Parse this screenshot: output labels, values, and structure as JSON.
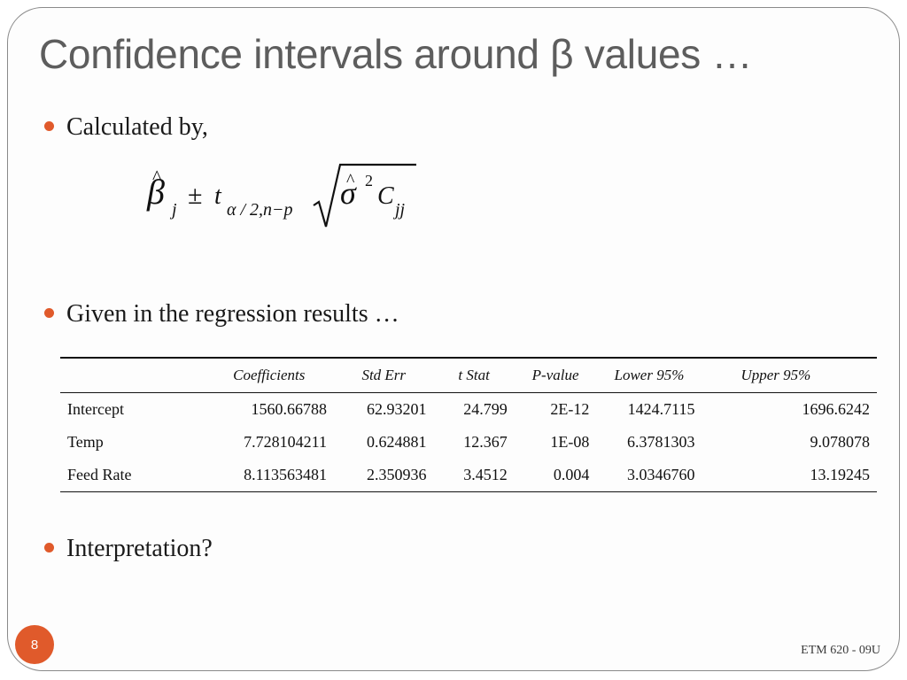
{
  "slide": {
    "title": "Confidence intervals around β values …",
    "bullets": [
      "Calculated by,",
      "Given in the regression results …",
      "Interpretation?"
    ],
    "formula": {
      "beta": "β",
      "hat": "^",
      "sub_j": "j",
      "pm": "±",
      "t": "t",
      "t_sub": "α / 2,n−p",
      "sigma": "σ",
      "sup_2": "2",
      "C": "C",
      "sub_jj": "jj"
    },
    "page_number": "8",
    "footer": "ETM 620 - 09U",
    "accent_color": "#e05a2b"
  },
  "regression_table": {
    "headers": [
      "",
      "Coefficients",
      "Std Err",
      "t Stat",
      "P-value",
      "Lower 95%",
      "Upper 95%"
    ],
    "rows": [
      [
        "Intercept",
        "1560.66788",
        "62.93201",
        "24.799",
        "2E-12",
        "1424.7115",
        "1696.6242"
      ],
      [
        "Temp",
        "7.728104211",
        "0.624881",
        "12.367",
        "1E-08",
        "6.3781303",
        "9.078078"
      ],
      [
        "Feed Rate",
        "8.113563481",
        "2.350936",
        "3.4512",
        "0.004",
        "3.0346760",
        "13.19245"
      ]
    ]
  }
}
